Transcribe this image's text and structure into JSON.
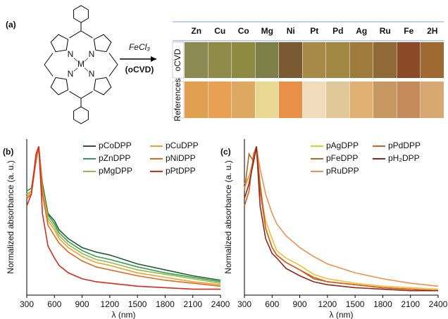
{
  "panel_a": {
    "label": "(a)",
    "reagent": "FeCl₃",
    "condition": "(oCVD)",
    "molecule_labels": [
      "N",
      "N",
      "N",
      "N",
      "M"
    ],
    "columns": [
      "Zn",
      "Cu",
      "Co",
      "Mg",
      "Ni",
      "Pt",
      "Pd",
      "Ag",
      "Ru",
      "Fe",
      "2H"
    ],
    "rows": [
      {
        "label": "oCVD",
        "colors": [
          "#8a8a52",
          "#8f8a48",
          "#8e8a42",
          "#7d7e48",
          "#7a5a32",
          "#a88a48",
          "#a08842",
          "#9e7a3c",
          "#8f6a36",
          "#8a4a28",
          "#9e6a32"
        ]
      },
      {
        "label": "References",
        "colors": [
          "#e0a052",
          "#e8a052",
          "#dca862",
          "#e8d892",
          "#e8904a",
          "#f0dcba",
          "#e0c89a",
          "#e0b072",
          "#c89862",
          "#c48a5a",
          "#d8a872"
        ]
      }
    ]
  },
  "chart_data": [
    {
      "type": "line",
      "panel_label": "(b)",
      "y_label": "Normalized absorbance (a. u.)",
      "x_label": "λ (nm)",
      "x": [
        300,
        350,
        400,
        430,
        470,
        530,
        600,
        650,
        750,
        900,
        1050,
        1200,
        1500,
        1800,
        2100,
        2400
      ],
      "xlim": [
        300,
        2400
      ],
      "xticks": [
        300,
        600,
        900,
        1200,
        1500,
        1800,
        2100,
        2400
      ],
      "ylim": [
        0,
        1.05
      ],
      "legend": "upper right",
      "series": [
        {
          "name": "pCoDPP",
          "color": "#1e5e32",
          "values": [
            0.7,
            0.72,
            0.9,
            1.0,
            0.75,
            0.55,
            0.5,
            0.44,
            0.38,
            0.32,
            0.29,
            0.27,
            0.21,
            0.17,
            0.13,
            0.1
          ]
        },
        {
          "name": "pZnDPP",
          "color": "#3a9a55",
          "values": [
            0.7,
            0.72,
            0.92,
            1.0,
            0.73,
            0.54,
            0.48,
            0.42,
            0.36,
            0.3,
            0.26,
            0.24,
            0.19,
            0.15,
            0.12,
            0.09
          ]
        },
        {
          "name": "pMgDPP",
          "color": "#8cc04a",
          "values": [
            0.68,
            0.7,
            0.9,
            1.0,
            0.72,
            0.52,
            0.46,
            0.4,
            0.34,
            0.28,
            0.24,
            0.22,
            0.17,
            0.14,
            0.11,
            0.08
          ]
        },
        {
          "name": "pCuDPP",
          "color": "#f0a030",
          "values": [
            0.66,
            0.7,
            0.93,
            1.0,
            0.7,
            0.5,
            0.44,
            0.38,
            0.32,
            0.26,
            0.22,
            0.2,
            0.15,
            0.12,
            0.09,
            0.07
          ]
        },
        {
          "name": "pNiDPP",
          "color": "#e06a20",
          "values": [
            0.65,
            0.68,
            0.9,
            1.0,
            0.68,
            0.47,
            0.4,
            0.35,
            0.29,
            0.23,
            0.19,
            0.17,
            0.13,
            0.1,
            0.08,
            0.06
          ]
        },
        {
          "name": "pPtDPP",
          "color": "#d42a20",
          "values": [
            0.6,
            0.68,
            0.95,
            1.0,
            0.55,
            0.33,
            0.25,
            0.2,
            0.15,
            0.11,
            0.09,
            0.08,
            0.06,
            0.05,
            0.04,
            0.04
          ]
        }
      ]
    },
    {
      "type": "line",
      "panel_label": "(c)",
      "y_label": "Normalized absorbance (a. u.)",
      "x_label": "λ (nm)",
      "x": [
        300,
        350,
        400,
        430,
        470,
        530,
        600,
        650,
        750,
        900,
        1050,
        1200,
        1500,
        1800,
        2100,
        2400
      ],
      "xlim": [
        300,
        2400
      ],
      "xticks": [
        300,
        600,
        900,
        1200,
        1500,
        1800,
        2100,
        2400
      ],
      "ylim": [
        0,
        1.05
      ],
      "legend": "upper right",
      "series": [
        {
          "name": "pAgDPP",
          "color": "#f0c030",
          "values": [
            0.75,
            0.8,
            0.9,
            1.0,
            0.7,
            0.5,
            0.38,
            0.3,
            0.25,
            0.2,
            0.14,
            0.11,
            0.08,
            0.06,
            0.05,
            0.04
          ]
        },
        {
          "name": "pFeDPP",
          "color": "#a0702a",
          "values": [
            0.7,
            0.95,
            0.9,
            1.0,
            0.75,
            0.45,
            0.32,
            0.27,
            0.22,
            0.17,
            0.11,
            0.09,
            0.07,
            0.05,
            0.04,
            0.03
          ]
        },
        {
          "name": "pRuDPP",
          "color": "#f09050",
          "values": [
            0.72,
            0.8,
            0.92,
            1.0,
            0.85,
            0.68,
            0.55,
            0.48,
            0.4,
            0.32,
            0.26,
            0.21,
            0.15,
            0.11,
            0.08,
            0.06
          ]
        },
        {
          "name": "pPdDPP",
          "color": "#e05a20",
          "values": [
            0.6,
            0.7,
            0.95,
            1.0,
            0.7,
            0.45,
            0.32,
            0.27,
            0.22,
            0.17,
            0.12,
            0.09,
            0.07,
            0.05,
            0.04,
            0.03
          ]
        },
        {
          "name": "pH₂DPP",
          "color": "#8a2a1a",
          "values": [
            0.65,
            0.75,
            0.9,
            1.0,
            0.6,
            0.38,
            0.28,
            0.25,
            0.18,
            0.13,
            0.09,
            0.07,
            0.05,
            0.04,
            0.03,
            0.03
          ]
        }
      ]
    }
  ]
}
